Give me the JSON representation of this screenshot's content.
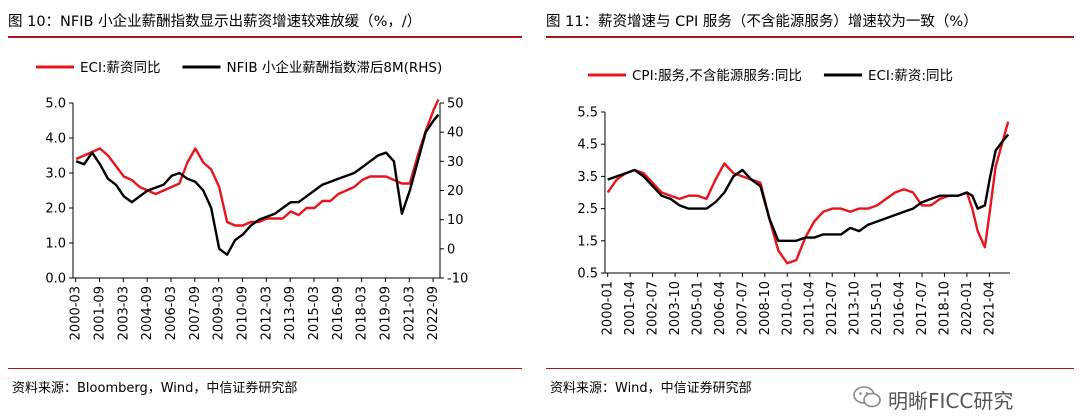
{
  "watermark": {
    "text": "明晰FICC研究",
    "icon": "wechat-bubble-icon"
  },
  "chart_data": [
    {
      "type": "line",
      "title": "图 10：NFIB 小企业薪酬指数显示出薪资增速较难放缓（%，/）",
      "source": "资料来源：Bloomberg，Wind，中信证券研究部",
      "legend": "top",
      "grid": false,
      "x_ticks": [
        "2000-03",
        "2001-09",
        "2003-03",
        "2004-09",
        "2006-03",
        "2007-09",
        "2009-03",
        "2010-09",
        "2012-03",
        "2013-09",
        "2015-03",
        "2016-09",
        "2018-03",
        "2019-09",
        "2021-03",
        "2022-09"
      ],
      "y_left": {
        "lim": [
          0.0,
          5.0
        ],
        "ticks": [
          "0.0",
          "1.0",
          "2.0",
          "3.0",
          "4.0",
          "5.0"
        ]
      },
      "y_right": {
        "lim": [
          -10,
          50
        ],
        "ticks": [
          "-10",
          "0",
          "10",
          "20",
          "30",
          "40",
          "50"
        ]
      },
      "series": [
        {
          "name": "ECI:薪资同比",
          "color": "#e8141b",
          "axis": "left",
          "x": [
            2000.2,
            2000.7,
            2001.2,
            2001.7,
            2002.2,
            2002.7,
            2003.2,
            2003.7,
            2004.2,
            2004.7,
            2005.2,
            2005.7,
            2006.2,
            2006.7,
            2007.2,
            2007.7,
            2008.2,
            2008.7,
            2009.2,
            2009.7,
            2010.2,
            2010.7,
            2011.2,
            2011.7,
            2012.2,
            2012.7,
            2013.2,
            2013.7,
            2014.2,
            2014.7,
            2015.2,
            2015.7,
            2016.2,
            2016.7,
            2017.2,
            2017.7,
            2018.2,
            2018.7,
            2019.2,
            2019.7,
            2020.2,
            2020.7,
            2021.2,
            2021.7,
            2022.2,
            2022.7,
            2023.0
          ],
          "y": [
            3.4,
            3.5,
            3.6,
            3.7,
            3.5,
            3.2,
            2.9,
            2.8,
            2.6,
            2.5,
            2.4,
            2.5,
            2.6,
            2.7,
            3.3,
            3.7,
            3.3,
            3.1,
            2.6,
            1.6,
            1.5,
            1.5,
            1.6,
            1.6,
            1.7,
            1.7,
            1.7,
            1.9,
            1.8,
            2.0,
            2.0,
            2.2,
            2.2,
            2.4,
            2.5,
            2.6,
            2.8,
            2.9,
            2.9,
            2.9,
            2.8,
            2.7,
            2.7,
            3.5,
            4.2,
            4.8,
            5.1
          ]
        },
        {
          "name": "NFIB 小企业薪酬指数滞后8M(RHS)",
          "color": "#000000",
          "axis": "right",
          "x": [
            2000.2,
            2000.7,
            2001.2,
            2001.7,
            2002.2,
            2002.7,
            2003.2,
            2003.7,
            2004.2,
            2004.7,
            2005.2,
            2005.7,
            2006.2,
            2006.7,
            2007.2,
            2007.7,
            2008.2,
            2008.7,
            2009.2,
            2009.7,
            2010.2,
            2010.7,
            2011.2,
            2011.7,
            2012.2,
            2012.7,
            2013.2,
            2013.7,
            2014.2,
            2014.7,
            2015.2,
            2015.7,
            2016.2,
            2016.7,
            2017.2,
            2017.7,
            2018.2,
            2018.7,
            2019.2,
            2019.7,
            2020.2,
            2020.7,
            2021.2,
            2021.7,
            2022.2,
            2022.7,
            2023.0
          ],
          "y": [
            30,
            29,
            33,
            29,
            24,
            22,
            18,
            16,
            18,
            20,
            21,
            22,
            25,
            26,
            24,
            23,
            20,
            14,
            0,
            -2,
            3,
            5,
            8,
            10,
            11,
            12,
            14,
            16,
            16,
            18,
            20,
            22,
            23,
            24,
            25,
            26,
            28,
            30,
            32,
            33,
            30,
            12,
            20,
            30,
            40,
            44,
            46
          ]
        }
      ]
    },
    {
      "type": "line",
      "title": "图 11：薪资增速与 CPI 服务（不含能源服务）增速较为一致（%）",
      "source": "资料来源：Wind，中信证券研究部",
      "legend": "top",
      "grid": false,
      "x_ticks": [
        "2000-01",
        "2001-04",
        "2002-07",
        "2003-10",
        "2005-01",
        "2006-04",
        "2007-07",
        "2008-10",
        "2010-01",
        "2011-04",
        "2012-07",
        "2013-10",
        "2015-01",
        "2016-04",
        "2017-07",
        "2018-10",
        "2020-01",
        "2021-04"
      ],
      "y_left": {
        "lim": [
          0.5,
          5.5
        ],
        "ticks": [
          "0.5",
          "1.5",
          "2.5",
          "3.5",
          "4.5",
          "5.5"
        ]
      },
      "series": [
        {
          "name": "CPI:服务,不含能源服务:同比",
          "color": "#e8141b",
          "axis": "left",
          "x": [
            2000.0,
            2000.5,
            2001.0,
            2001.5,
            2002.0,
            2002.5,
            2003.0,
            2003.5,
            2004.0,
            2004.5,
            2005.0,
            2005.5,
            2006.0,
            2006.5,
            2007.0,
            2007.5,
            2008.0,
            2008.5,
            2009.0,
            2009.5,
            2010.0,
            2010.5,
            2011.0,
            2011.5,
            2012.0,
            2012.5,
            2013.0,
            2013.5,
            2014.0,
            2014.5,
            2015.0,
            2015.5,
            2016.0,
            2016.5,
            2017.0,
            2017.5,
            2018.0,
            2018.5,
            2019.0,
            2019.5,
            2020.0,
            2020.3,
            2020.6,
            2021.0,
            2021.3,
            2021.6,
            2022.0,
            2022.3
          ],
          "y": [
            3.0,
            3.4,
            3.6,
            3.7,
            3.6,
            3.3,
            3.0,
            2.9,
            2.8,
            2.9,
            2.9,
            2.8,
            3.4,
            3.9,
            3.6,
            3.5,
            3.4,
            3.3,
            2.2,
            1.2,
            0.8,
            0.9,
            1.6,
            2.1,
            2.4,
            2.5,
            2.5,
            2.4,
            2.5,
            2.5,
            2.6,
            2.8,
            3.0,
            3.1,
            3.0,
            2.6,
            2.6,
            2.8,
            2.9,
            2.9,
            3.0,
            2.5,
            1.8,
            1.3,
            2.5,
            3.8,
            4.6,
            5.2
          ]
        },
        {
          "name": "ECI:薪资:同比",
          "color": "#000000",
          "axis": "left",
          "x": [
            2000.0,
            2000.5,
            2001.0,
            2001.5,
            2002.0,
            2002.5,
            2003.0,
            2003.5,
            2004.0,
            2004.5,
            2005.0,
            2005.5,
            2006.0,
            2006.5,
            2007.0,
            2007.5,
            2008.0,
            2008.5,
            2009.0,
            2009.5,
            2010.0,
            2010.5,
            2011.0,
            2011.5,
            2012.0,
            2012.5,
            2013.0,
            2013.5,
            2014.0,
            2014.5,
            2015.0,
            2015.5,
            2016.0,
            2016.5,
            2017.0,
            2017.5,
            2018.0,
            2018.5,
            2019.0,
            2019.5,
            2020.0,
            2020.3,
            2020.6,
            2021.0,
            2021.3,
            2021.6,
            2022.0,
            2022.3
          ],
          "y": [
            3.4,
            3.5,
            3.6,
            3.7,
            3.5,
            3.2,
            2.9,
            2.8,
            2.6,
            2.5,
            2.5,
            2.5,
            2.7,
            3.0,
            3.5,
            3.7,
            3.4,
            3.2,
            2.2,
            1.5,
            1.5,
            1.5,
            1.6,
            1.6,
            1.7,
            1.7,
            1.7,
            1.9,
            1.8,
            2.0,
            2.1,
            2.2,
            2.3,
            2.4,
            2.5,
            2.7,
            2.8,
            2.9,
            2.9,
            2.9,
            3.0,
            2.9,
            2.5,
            2.6,
            3.5,
            4.3,
            4.6,
            4.8
          ]
        }
      ]
    }
  ]
}
